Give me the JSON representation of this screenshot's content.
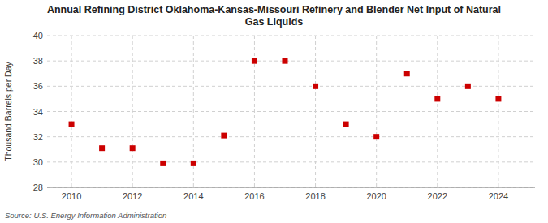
{
  "chart_data": {
    "type": "scatter",
    "title": "Annual Refining District Oklahoma-Kansas-Missouri Refinery and Blender Net Input of Natural\nGas Liquids",
    "y_label": "Thousand Barrels per Day",
    "annotations": [
      "Source: U.S. Energy Information Administration"
    ],
    "x": [
      2010,
      2011,
      2012,
      2013,
      2014,
      2015,
      2016,
      2017,
      2018,
      2019,
      2020,
      2021,
      2022,
      2023,
      2024
    ],
    "values": [
      33.0,
      31.1,
      31.1,
      29.9,
      29.9,
      32.1,
      38.0,
      38.0,
      36.0,
      33.0,
      32.0,
      37.0,
      35.0,
      36.0,
      35.0
    ],
    "color": "#cc0000",
    "marker": "square",
    "xlim": [
      2009.2,
      2025.2
    ],
    "xticks": [
      2010,
      2012,
      2014,
      2016,
      2018,
      2020,
      2022,
      2024
    ],
    "ylim": [
      28,
      40
    ],
    "yticks": [
      28,
      30,
      32,
      34,
      36,
      38,
      40
    ],
    "grid": true
  }
}
